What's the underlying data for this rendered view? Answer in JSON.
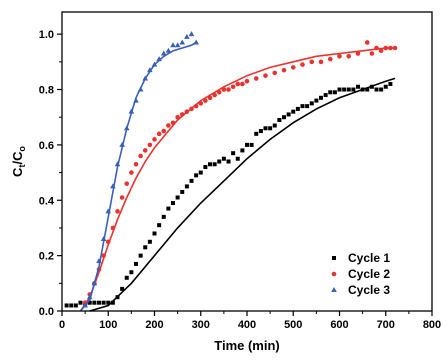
{
  "chart_data": {
    "type": "scatter",
    "xlabel": "Time (min)",
    "ylabel_main": "C",
    "ylabel_sub1": "t",
    "ylabel_mid": "/C",
    "ylabel_sub2": "o",
    "xlim": [
      0,
      800
    ],
    "ylim": [
      0,
      1.08
    ],
    "xticks": [
      0,
      100,
      200,
      300,
      400,
      500,
      600,
      700,
      800
    ],
    "yticks": [
      0.0,
      0.2,
      0.4,
      0.6,
      0.8,
      1.0
    ],
    "ytick_labels": [
      "0.0",
      "0.2",
      "0.4",
      "0.6",
      "0.8",
      "1.0"
    ],
    "grid": false,
    "legend_position": "bottom-right",
    "series": [
      {
        "name": "Cycle 1",
        "color": "#000000",
        "marker": "square",
        "points": [
          [
            10,
            0.02
          ],
          [
            20,
            0.02
          ],
          [
            30,
            0.02
          ],
          [
            40,
            0.03
          ],
          [
            50,
            0.02
          ],
          [
            60,
            0.03
          ],
          [
            70,
            0.03
          ],
          [
            80,
            0.03
          ],
          [
            90,
            0.03
          ],
          [
            100,
            0.03
          ],
          [
            110,
            0.03
          ],
          [
            120,
            0.05
          ],
          [
            130,
            0.08
          ],
          [
            140,
            0.12
          ],
          [
            150,
            0.14
          ],
          [
            160,
            0.17
          ],
          [
            170,
            0.2
          ],
          [
            180,
            0.23
          ],
          [
            190,
            0.25
          ],
          [
            200,
            0.28
          ],
          [
            210,
            0.31
          ],
          [
            220,
            0.34
          ],
          [
            230,
            0.37
          ],
          [
            240,
            0.39
          ],
          [
            250,
            0.41
          ],
          [
            260,
            0.43
          ],
          [
            270,
            0.45
          ],
          [
            280,
            0.47
          ],
          [
            290,
            0.49
          ],
          [
            300,
            0.5
          ],
          [
            310,
            0.52
          ],
          [
            320,
            0.53
          ],
          [
            330,
            0.53
          ],
          [
            340,
            0.54
          ],
          [
            350,
            0.55
          ],
          [
            360,
            0.54
          ],
          [
            370,
            0.57
          ],
          [
            380,
            0.55
          ],
          [
            390,
            0.58
          ],
          [
            400,
            0.6
          ],
          [
            410,
            0.6
          ],
          [
            420,
            0.64
          ],
          [
            430,
            0.65
          ],
          [
            440,
            0.66
          ],
          [
            450,
            0.66
          ],
          [
            460,
            0.67
          ],
          [
            470,
            0.69
          ],
          [
            480,
            0.7
          ],
          [
            490,
            0.71
          ],
          [
            500,
            0.72
          ],
          [
            510,
            0.73
          ],
          [
            520,
            0.74
          ],
          [
            530,
            0.74
          ],
          [
            540,
            0.75
          ],
          [
            550,
            0.76
          ],
          [
            560,
            0.77
          ],
          [
            570,
            0.78
          ],
          [
            580,
            0.79
          ],
          [
            590,
            0.79
          ],
          [
            600,
            0.8
          ],
          [
            610,
            0.8
          ],
          [
            620,
            0.8
          ],
          [
            630,
            0.8
          ],
          [
            640,
            0.81
          ],
          [
            650,
            0.8
          ],
          [
            660,
            0.8
          ],
          [
            670,
            0.81
          ],
          [
            680,
            0.8
          ],
          [
            690,
            0.8
          ],
          [
            700,
            0.81
          ],
          [
            710,
            0.82
          ]
        ],
        "fit": [
          [
            60,
            0.0
          ],
          [
            100,
            0.02
          ],
          [
            150,
            0.1
          ],
          [
            200,
            0.2
          ],
          [
            250,
            0.3
          ],
          [
            300,
            0.39
          ],
          [
            350,
            0.47
          ],
          [
            400,
            0.55
          ],
          [
            450,
            0.62
          ],
          [
            500,
            0.68
          ],
          [
            550,
            0.73
          ],
          [
            600,
            0.77
          ],
          [
            650,
            0.8
          ],
          [
            700,
            0.83
          ],
          [
            720,
            0.84
          ]
        ]
      },
      {
        "name": "Cycle 2",
        "color": "#e8332e",
        "marker": "circle",
        "points": [
          [
            50,
            0.03
          ],
          [
            60,
            0.06
          ],
          [
            70,
            0.1
          ],
          [
            80,
            0.15
          ],
          [
            90,
            0.2
          ],
          [
            100,
            0.25
          ],
          [
            110,
            0.3
          ],
          [
            120,
            0.36
          ],
          [
            130,
            0.41
          ],
          [
            140,
            0.46
          ],
          [
            150,
            0.5
          ],
          [
            160,
            0.53
          ],
          [
            170,
            0.56
          ],
          [
            180,
            0.58
          ],
          [
            190,
            0.6
          ],
          [
            200,
            0.62
          ],
          [
            210,
            0.64
          ],
          [
            220,
            0.65
          ],
          [
            230,
            0.67
          ],
          [
            240,
            0.68
          ],
          [
            250,
            0.7
          ],
          [
            260,
            0.71
          ],
          [
            270,
            0.72
          ],
          [
            280,
            0.73
          ],
          [
            290,
            0.74
          ],
          [
            300,
            0.75
          ],
          [
            310,
            0.76
          ],
          [
            320,
            0.77
          ],
          [
            330,
            0.78
          ],
          [
            340,
            0.79
          ],
          [
            350,
            0.8
          ],
          [
            360,
            0.8
          ],
          [
            370,
            0.81
          ],
          [
            380,
            0.82
          ],
          [
            390,
            0.82
          ],
          [
            400,
            0.83
          ],
          [
            420,
            0.84
          ],
          [
            440,
            0.85
          ],
          [
            460,
            0.86
          ],
          [
            480,
            0.87
          ],
          [
            500,
            0.88
          ],
          [
            520,
            0.89
          ],
          [
            540,
            0.9
          ],
          [
            560,
            0.9
          ],
          [
            580,
            0.91
          ],
          [
            600,
            0.92
          ],
          [
            620,
            0.92
          ],
          [
            640,
            0.93
          ],
          [
            660,
            0.97
          ],
          [
            670,
            0.93
          ],
          [
            680,
            0.95
          ],
          [
            690,
            0.94
          ],
          [
            700,
            0.95
          ],
          [
            710,
            0.95
          ],
          [
            720,
            0.95
          ]
        ],
        "fit": [
          [
            40,
            0.0
          ],
          [
            60,
            0.05
          ],
          [
            80,
            0.14
          ],
          [
            100,
            0.24
          ],
          [
            120,
            0.33
          ],
          [
            140,
            0.41
          ],
          [
            160,
            0.48
          ],
          [
            180,
            0.54
          ],
          [
            200,
            0.59
          ],
          [
            250,
            0.69
          ],
          [
            300,
            0.76
          ],
          [
            350,
            0.81
          ],
          [
            400,
            0.85
          ],
          [
            450,
            0.88
          ],
          [
            500,
            0.9
          ],
          [
            550,
            0.92
          ],
          [
            600,
            0.93
          ],
          [
            650,
            0.94
          ],
          [
            700,
            0.95
          ],
          [
            720,
            0.95
          ]
        ]
      },
      {
        "name": "Cycle 3",
        "color": "#3a5fb8",
        "marker": "triangle",
        "points": [
          [
            50,
            0.02
          ],
          [
            60,
            0.05
          ],
          [
            70,
            0.1
          ],
          [
            80,
            0.18
          ],
          [
            90,
            0.26
          ],
          [
            100,
            0.36
          ],
          [
            110,
            0.45
          ],
          [
            120,
            0.53
          ],
          [
            130,
            0.6
          ],
          [
            140,
            0.66
          ],
          [
            150,
            0.72
          ],
          [
            160,
            0.76
          ],
          [
            170,
            0.8
          ],
          [
            180,
            0.84
          ],
          [
            190,
            0.87
          ],
          [
            200,
            0.89
          ],
          [
            210,
            0.91
          ],
          [
            220,
            0.93
          ],
          [
            230,
            0.94
          ],
          [
            240,
            0.96
          ],
          [
            250,
            0.96
          ],
          [
            260,
            0.97
          ],
          [
            270,
            0.99
          ],
          [
            280,
            1.0
          ],
          [
            290,
            0.97
          ]
        ],
        "fit": [
          [
            40,
            0.0
          ],
          [
            60,
            0.04
          ],
          [
            80,
            0.16
          ],
          [
            100,
            0.34
          ],
          [
            120,
            0.52
          ],
          [
            140,
            0.66
          ],
          [
            160,
            0.77
          ],
          [
            180,
            0.84
          ],
          [
            200,
            0.89
          ],
          [
            220,
            0.92
          ],
          [
            240,
            0.94
          ],
          [
            260,
            0.95
          ],
          [
            280,
            0.96
          ],
          [
            290,
            0.97
          ]
        ]
      }
    ]
  }
}
